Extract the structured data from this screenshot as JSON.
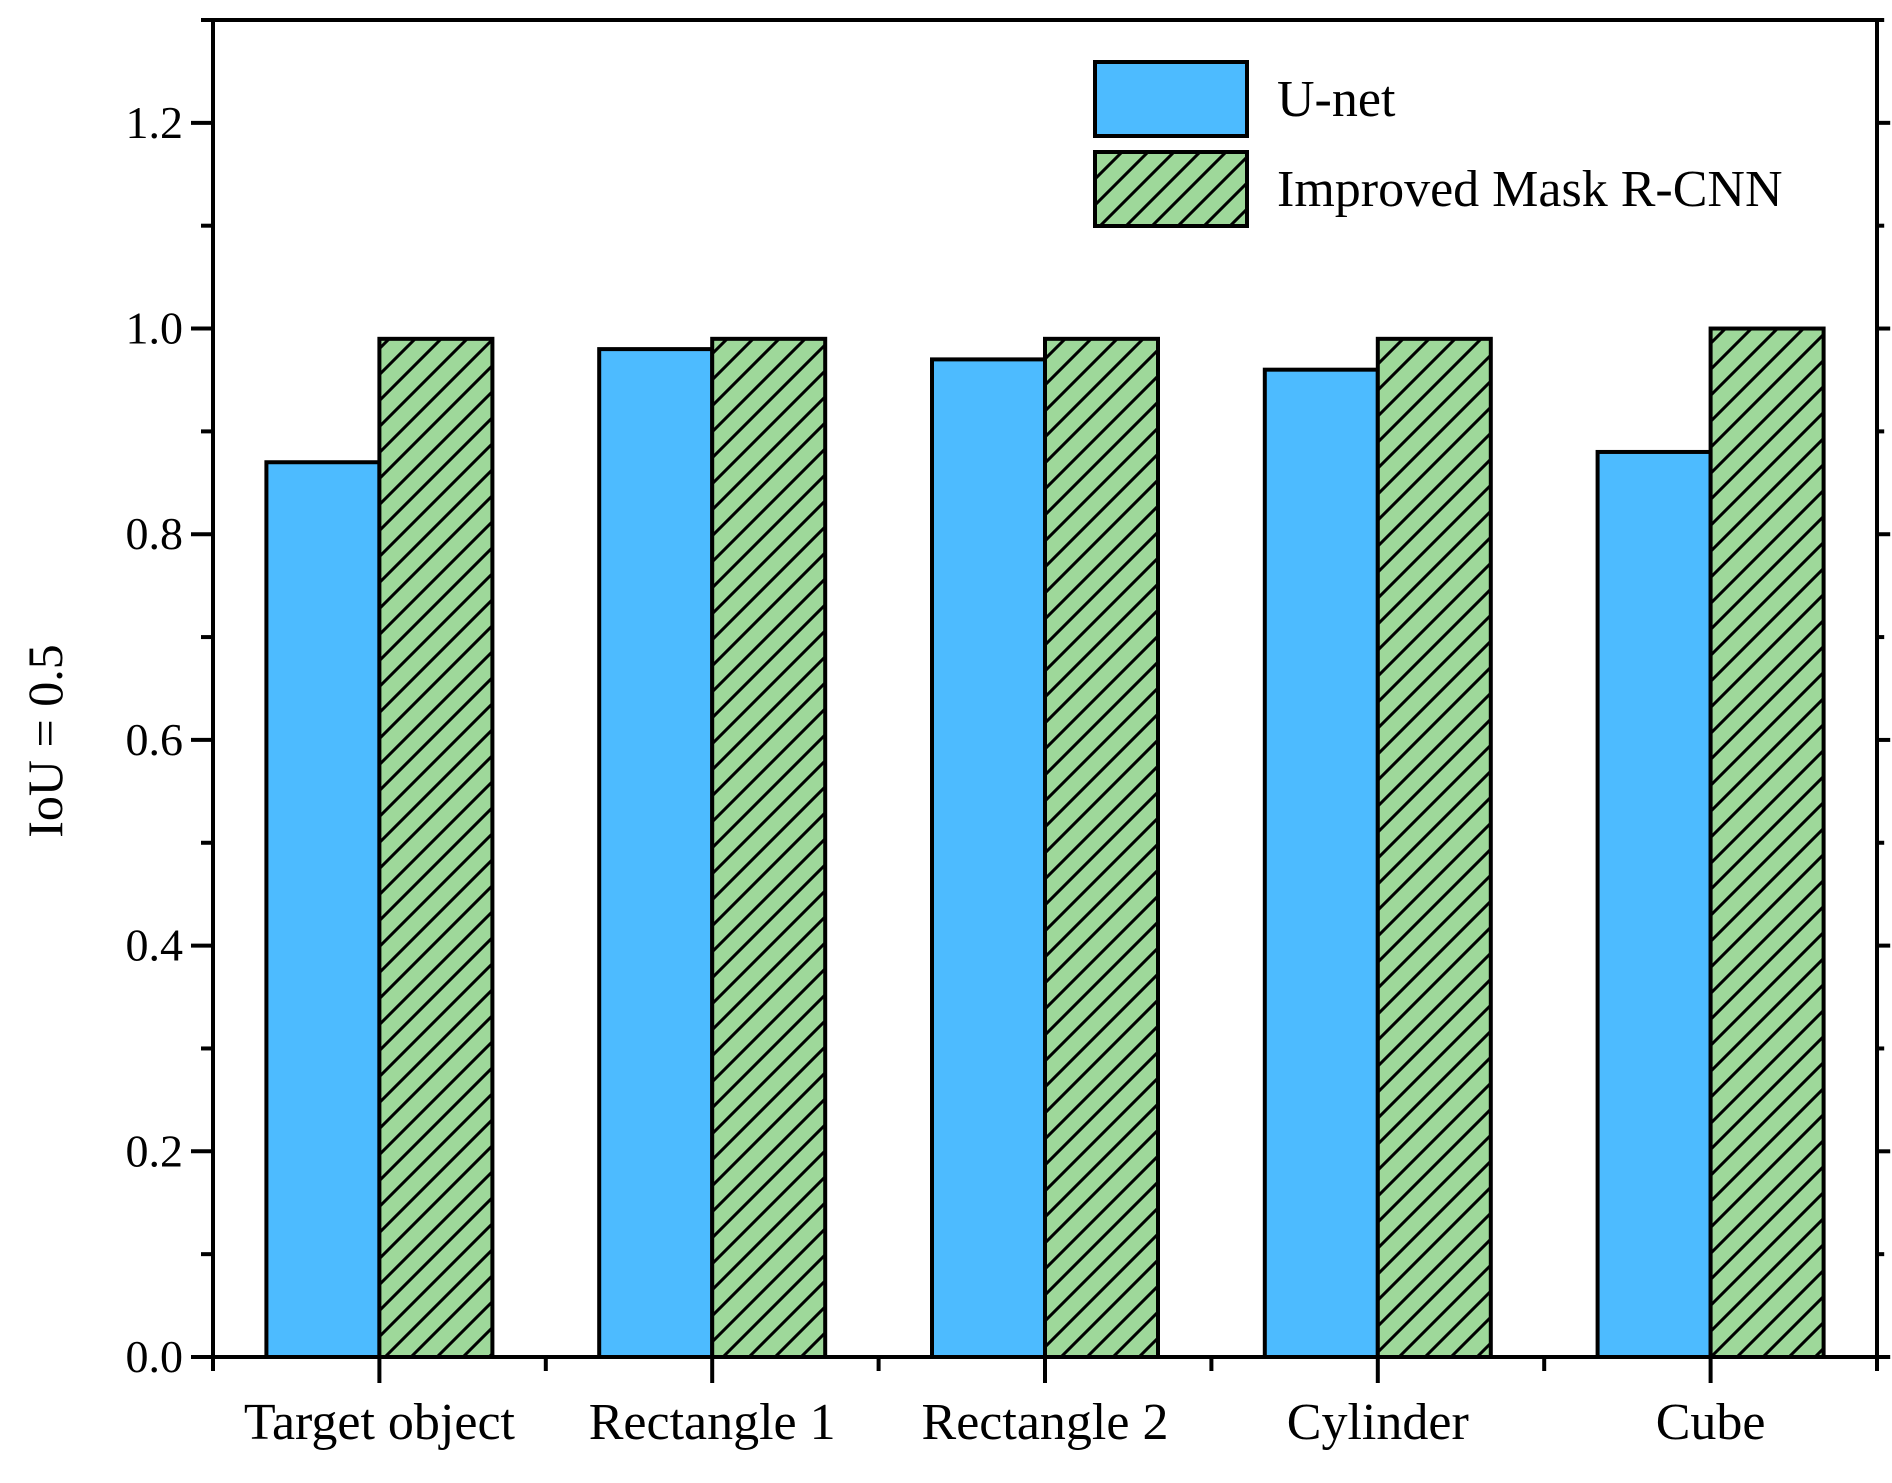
{
  "chart_data": {
    "type": "bar",
    "ylabel": "IoU = 0.5",
    "xlabel": "",
    "ylim": [
      0,
      1.3
    ],
    "yticks": [
      "0.0",
      "0.2",
      "0.4",
      "0.6",
      "0.8",
      "1.0",
      "1.2"
    ],
    "categories": [
      "Target object",
      "Rectangle 1",
      "Rectangle 2",
      "Cylinder",
      "Cube"
    ],
    "series": [
      {
        "name": "U-net",
        "values": [
          0.87,
          0.98,
          0.97,
          0.96,
          0.88
        ],
        "color": "#4dbbff",
        "pattern": "solid"
      },
      {
        "name": "Improved Mask R-CNN",
        "values": [
          0.99,
          0.99,
          0.99,
          0.99,
          1.0
        ],
        "color": "#9ed89a",
        "pattern": "diagonal-hatch"
      }
    ],
    "legend_position": "top-right",
    "grid": false
  }
}
